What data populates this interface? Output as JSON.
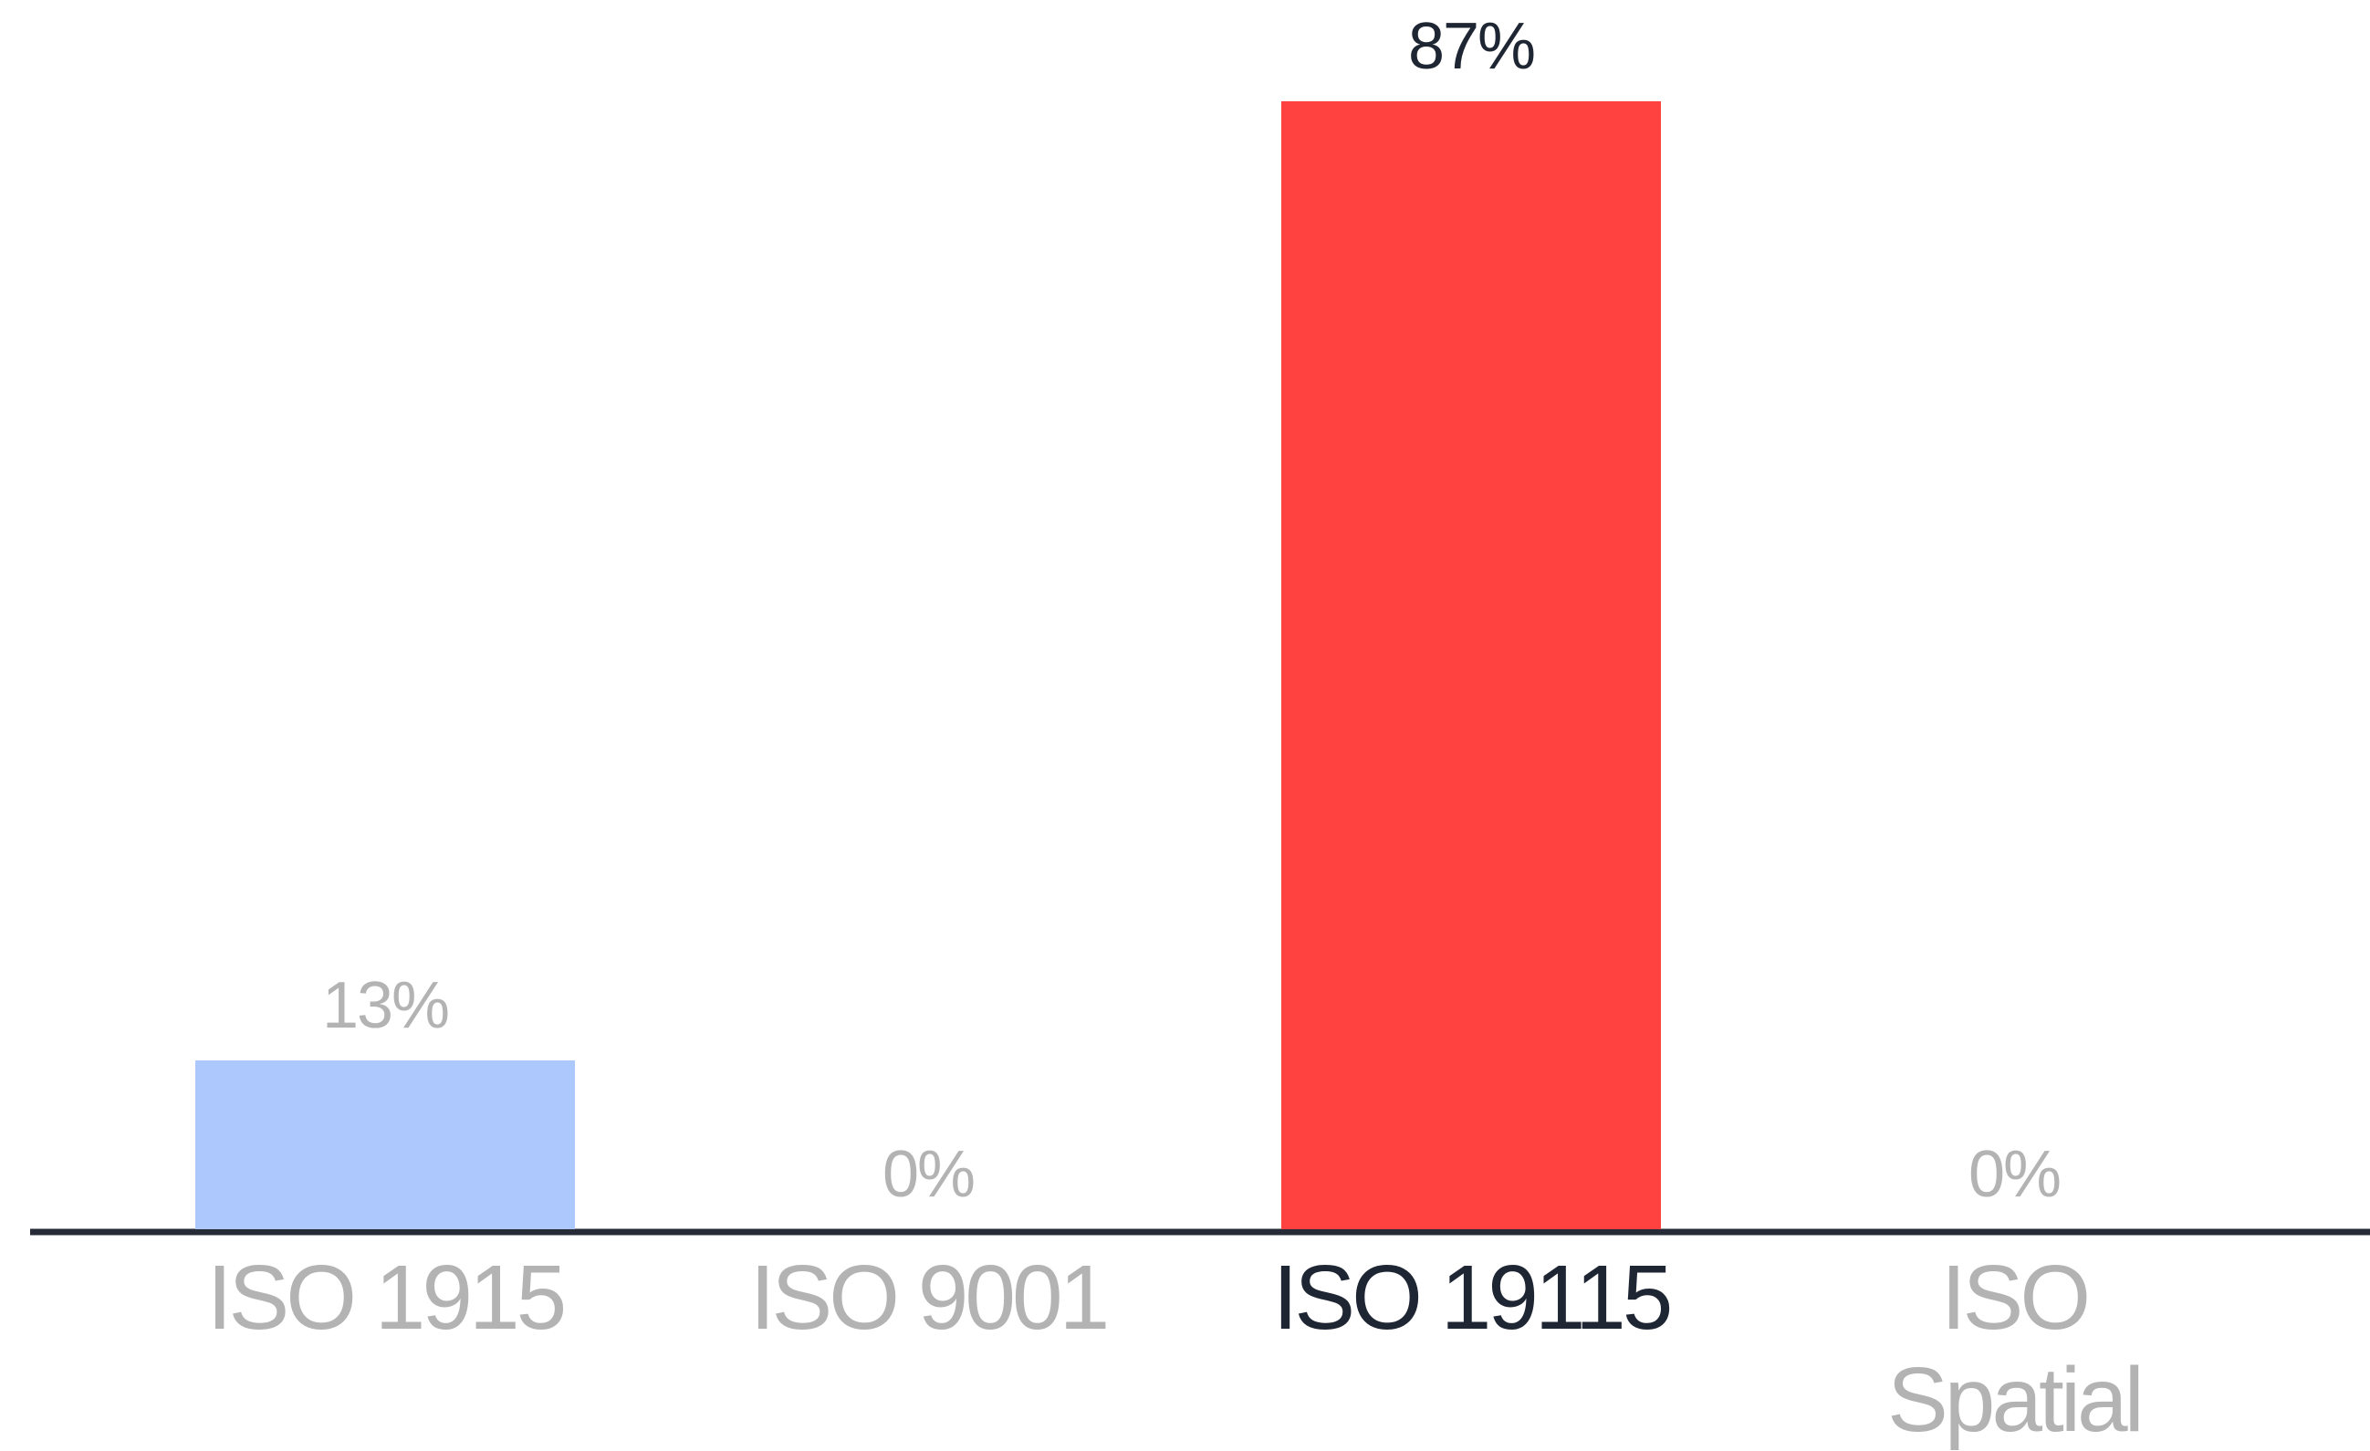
{
  "chart_data": {
    "type": "bar",
    "categories": [
      "ISO 1915",
      "ISO 9001",
      "ISO 19115",
      "ISO Spatial"
    ],
    "values": [
      13,
      0,
      87,
      0
    ],
    "value_labels": [
      "13%",
      "0%",
      "87%",
      "0%"
    ],
    "colors": [
      "#adc8fd",
      "#adc8fd",
      "#ff4140",
      "#adc8fd"
    ],
    "label_colors": [
      "#b3b3b3",
      "#b3b3b3",
      "#1f2633",
      "#b3b3b3"
    ],
    "ylim": [
      0,
      87
    ]
  }
}
